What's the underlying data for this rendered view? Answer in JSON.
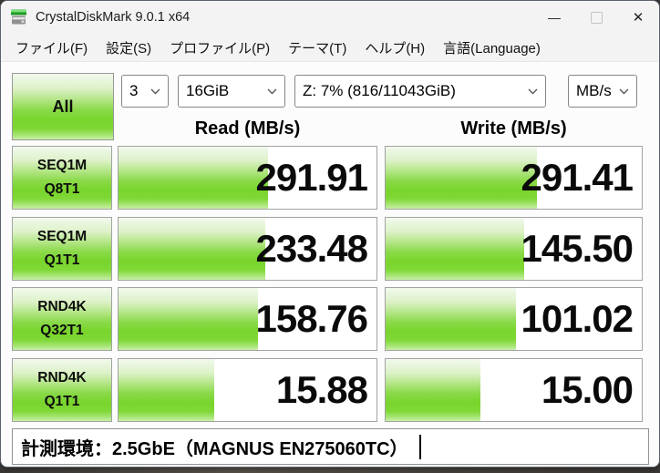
{
  "window": {
    "title": "CrystalDiskMark 9.0.1 x64",
    "controls": {
      "minimize_glyph": "—",
      "close_glyph": "✕"
    }
  },
  "menu": {
    "items": {
      "file": "ファイル(F)",
      "settings": "設定(S)",
      "profile": "プロファイル(P)",
      "theme": "テーマ(T)",
      "help": "ヘルプ(H)",
      "language": "言語(Language)"
    }
  },
  "controls": {
    "all_button": "All",
    "test_count": "3",
    "test_size": "16GiB",
    "target_drive": "Z: 7% (816/11043GiB)",
    "unit": "MB/s"
  },
  "columns": {
    "read": "Read (MB/s)",
    "write": "Write (MB/s)"
  },
  "results": [
    {
      "label_line1": "SEQ1M",
      "label_line2": "Q8T1",
      "read": "291.91",
      "write": "291.41",
      "read_fill": 58,
      "write_fill": 59
    },
    {
      "label_line1": "SEQ1M",
      "label_line2": "Q1T1",
      "read": "233.48",
      "write": "145.50",
      "read_fill": 57,
      "write_fill": 54
    },
    {
      "label_line1": "RND4K",
      "label_line2": "Q32T1",
      "read": "158.76",
      "write": "101.02",
      "read_fill": 54,
      "write_fill": 51
    },
    {
      "label_line1": "RND4K",
      "label_line2": "Q1T1",
      "read": "15.88",
      "write": "15.00",
      "read_fill": 37,
      "write_fill": 37
    }
  ],
  "comment": {
    "value": "計測環境：2.5GbE（MAGNUS EN275060TC）"
  },
  "colors": {
    "bar_green": "#79d52c",
    "bar_green_light": "#ddf2c9",
    "titlebar_bg": "#f3f3f3",
    "cell_border": "#a3a3a3"
  }
}
